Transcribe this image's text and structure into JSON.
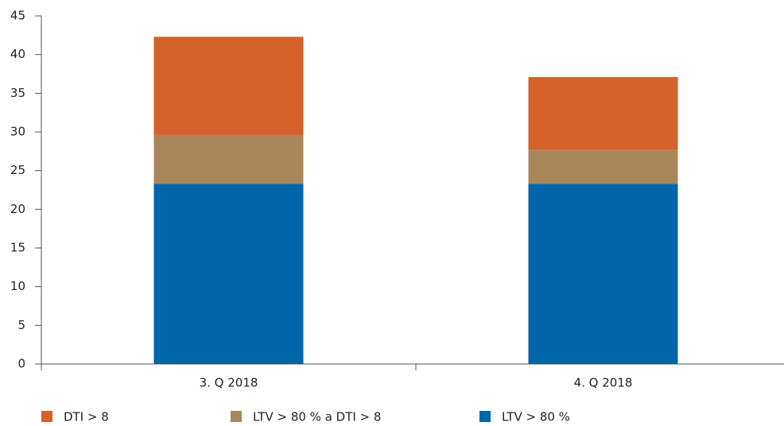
{
  "chart_data": {
    "type": "stacked-bar",
    "categories": [
      "3. Q 2018",
      "4. Q 2018"
    ],
    "series": [
      {
        "name": "DTI > 8",
        "color": "#d4622a",
        "values": [
          12.7,
          9.4
        ]
      },
      {
        "name": "LTV > 80 % a DTI > 8",
        "color": "#a8865a",
        "values": [
          6.3,
          4.4
        ]
      },
      {
        "name": "LTV > 80 %",
        "color": "#0066aa",
        "values": [
          23.3,
          23.3
        ]
      }
    ],
    "ylim": [
      0,
      45
    ],
    "yticks": [
      0,
      5,
      10,
      15,
      20,
      25,
      30,
      35,
      40,
      45
    ],
    "grid": false
  }
}
